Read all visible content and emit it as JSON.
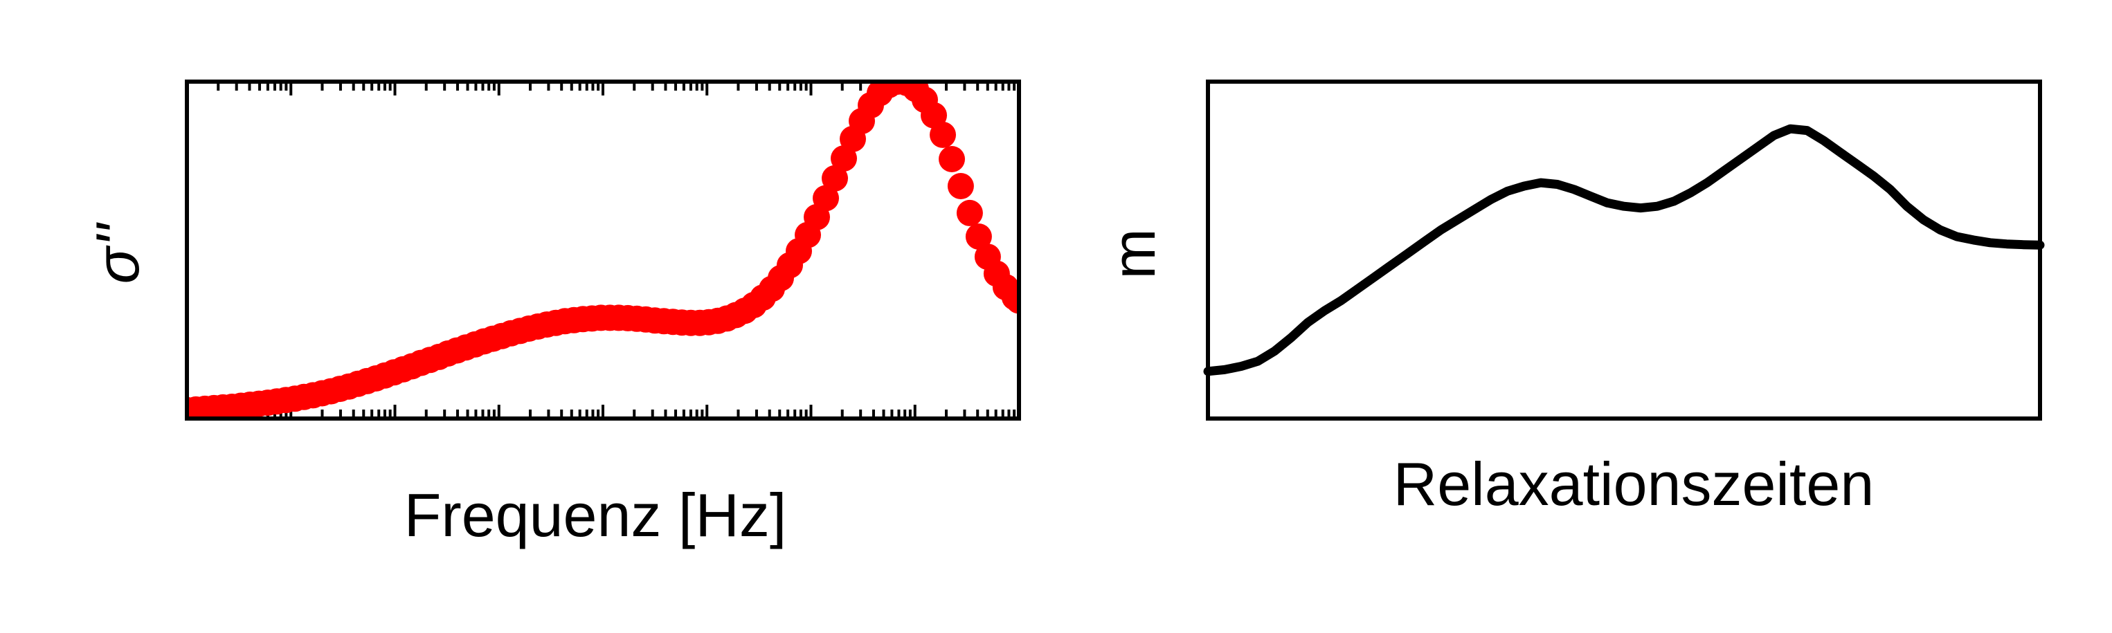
{
  "chart_data": [
    {
      "type": "scatter",
      "xlabel": "Frequenz [Hz]",
      "ylabel": "σ''",
      "x_scale": "log",
      "xlim": [
        0.01,
        1000000
      ],
      "ylim": [
        0,
        1
      ],
      "x_tick_labels": [],
      "y_tick_labels": [],
      "grid": false,
      "marker_color": "#ff0000",
      "series": [
        {
          "x": [
            0.01,
            0.0122,
            0.0149,
            0.0182,
            0.0222,
            0.0271,
            0.0331,
            0.0404,
            0.0493,
            0.0602,
            0.0734,
            0.0896,
            0.1094,
            0.1335,
            0.163,
            0.199,
            0.2428,
            0.2964,
            0.3617,
            0.4414,
            0.5387,
            0.6574,
            0.8023,
            0.9792,
            1.195,
            1.458,
            1.78,
            2.172,
            2.651,
            3.236,
            3.949,
            4.819,
            5.881,
            7.177,
            8.759,
            10.69,
            13.05,
            15.92,
            19.43,
            23.71,
            28.94,
            35.32,
            43.1,
            52.6,
            64.2,
            78.35,
            95.61,
            116.7,
            142.4,
            173.8,
            212.1,
            258.8,
            315.9,
            385.5,
            470.5,
            574.2,
            700.7,
            855.2,
            1043.7,
            1273.7,
            1554.4,
            1897,
            2315,
            2825,
            3448,
            4208,
            5135,
            6267,
            7648,
            9334,
            11391,
            13902,
            16966,
            20705,
            25269,
            30838,
            37634,
            45929,
            56052,
            68406,
            83482,
            101881,
            124335,
            151739,
            185183,
            226000,
            275800,
            336600,
            410800,
            501300,
            611800,
            746600,
            911200,
            1000000
          ],
          "y": [
            0.025,
            0.027,
            0.029,
            0.031,
            0.033,
            0.035,
            0.038,
            0.041,
            0.044,
            0.047,
            0.051,
            0.055,
            0.059,
            0.064,
            0.069,
            0.075,
            0.081,
            0.088,
            0.095,
            0.103,
            0.111,
            0.119,
            0.128,
            0.137,
            0.146,
            0.155,
            0.165,
            0.174,
            0.183,
            0.193,
            0.202,
            0.211,
            0.22,
            0.229,
            0.237,
            0.245,
            0.253,
            0.26,
            0.267,
            0.273,
            0.279,
            0.284,
            0.289,
            0.292,
            0.295,
            0.297,
            0.299,
            0.299,
            0.299,
            0.298,
            0.296,
            0.294,
            0.291,
            0.289,
            0.287,
            0.285,
            0.284,
            0.284,
            0.286,
            0.29,
            0.297,
            0.307,
            0.32,
            0.337,
            0.359,
            0.385,
            0.417,
            0.455,
            0.497,
            0.545,
            0.598,
            0.654,
            0.713,
            0.772,
            0.83,
            0.883,
            0.93,
            0.966,
            0.99,
            1.0,
            0.996,
            0.978,
            0.946,
            0.9,
            0.842,
            0.77,
            0.69,
            0.61,
            0.54,
            0.48,
            0.43,
            0.39,
            0.36,
            0.35
          ]
        }
      ]
    },
    {
      "type": "line",
      "xlabel": "Relaxationszeiten",
      "ylabel": "m",
      "xlim": [
        0,
        1
      ],
      "ylim": [
        0,
        1
      ],
      "x_tick_labels": [],
      "y_tick_labels": [],
      "grid": false,
      "line_color": "#000000",
      "series": [
        {
          "x": [
            0,
            0.02,
            0.04,
            0.06,
            0.08,
            0.1,
            0.12,
            0.14,
            0.16,
            0.18,
            0.2,
            0.22,
            0.24,
            0.26,
            0.28,
            0.3,
            0.32,
            0.34,
            0.36,
            0.38,
            0.4,
            0.42,
            0.44,
            0.46,
            0.48,
            0.5,
            0.52,
            0.54,
            0.56,
            0.58,
            0.6,
            0.62,
            0.64,
            0.66,
            0.68,
            0.7,
            0.72,
            0.74,
            0.76,
            0.78,
            0.8,
            0.82,
            0.84,
            0.86,
            0.88,
            0.9,
            0.92,
            0.94,
            0.96,
            0.98,
            1.0
          ],
          "y": [
            0.14,
            0.145,
            0.155,
            0.17,
            0.2,
            0.24,
            0.285,
            0.32,
            0.35,
            0.385,
            0.42,
            0.455,
            0.49,
            0.525,
            0.56,
            0.59,
            0.62,
            0.65,
            0.675,
            0.69,
            0.7,
            0.695,
            0.68,
            0.66,
            0.64,
            0.63,
            0.625,
            0.63,
            0.645,
            0.67,
            0.7,
            0.735,
            0.77,
            0.805,
            0.84,
            0.86,
            0.855,
            0.825,
            0.79,
            0.755,
            0.72,
            0.68,
            0.63,
            0.59,
            0.56,
            0.54,
            0.53,
            0.522,
            0.518,
            0.516,
            0.515
          ]
        }
      ]
    }
  ]
}
